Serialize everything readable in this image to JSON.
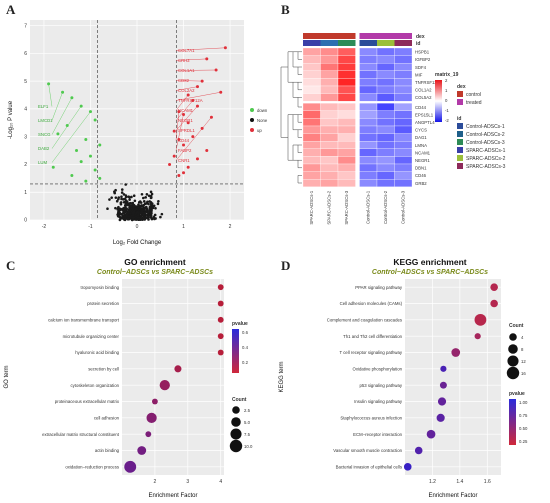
{
  "panels": {
    "A": "A",
    "B": "B",
    "C": "C",
    "D": "D"
  },
  "volcano": {
    "xlabel": "Log₂ Fold Change",
    "ylabel": "-Log₁₀ P value",
    "xticks": [
      "-2",
      "-1",
      "0",
      "1",
      "2"
    ],
    "yticks": [
      "0",
      "1",
      "2",
      "3",
      "4",
      "5",
      "6",
      "7"
    ],
    "legend": [
      {
        "label": "down",
        "color": "#4fc94f"
      },
      {
        "label": "None",
        "color": "#111111"
      },
      {
        "label": "up",
        "color": "#e0303a"
      }
    ],
    "up_labels": [
      "COL7A1",
      "CRH2",
      "COL1A1",
      "CD82",
      "COL2A2",
      "TNFRSF12A",
      "NCAM1",
      "NEGR1",
      "SPRDL1",
      "CD44",
      "FABP2",
      "CNR1"
    ],
    "down_labels": [
      "ELF1",
      "LMCD1",
      "SNCG",
      "DAB2",
      "LUM"
    ]
  },
  "heatmap": {
    "genes": [
      "HSPB1",
      "IGFBP2",
      "SDF4",
      "MIF",
      "TNFRSF12A",
      "COL1A2",
      "COL5A2",
      "CD44",
      "EPS15L1",
      "ANGPTL4",
      "CYCS",
      "DAG1",
      "LMNA",
      "NCAM1",
      "NEGR1",
      "DBN1",
      "CD46",
      "GRB2"
    ],
    "columns": [
      "SPARC-ADSCs-1",
      "SPARC-ADSCs-2",
      "SPARC-ADSCs-3",
      "Control-ADSCs-1",
      "Control-ADSCs-2",
      "Control-ADSCs-3"
    ],
    "legend_title": "matrix_19",
    "scale_ticks": [
      "2",
      "1",
      "0",
      "-1",
      "-2"
    ],
    "dex_title": "dex",
    "dex_items": [
      {
        "label": "control",
        "color": "#c0392b"
      },
      {
        "label": "treated",
        "color": "#b23aa8"
      }
    ],
    "id_title": "id",
    "id_items": [
      {
        "label": "Control-ADSCs-1",
        "color": "#2b4c9a"
      },
      {
        "label": "Control-ADSCs-2",
        "color": "#1e5f8a"
      },
      {
        "label": "Control-ADSCs-3",
        "color": "#2e8b57"
      },
      {
        "label": "SPARC-ADSCs-1",
        "color": "#3a3fa8"
      },
      {
        "label": "SPARC-ADSCs-2",
        "color": "#9bbf3a"
      },
      {
        "label": "SPARC-ADSCs-3",
        "color": "#8e2a5a"
      }
    ],
    "dex_bar": [
      "#c0392b",
      "#c0392b",
      "#c0392b",
      "#b23aa8",
      "#b23aa8",
      "#b23aa8"
    ],
    "id_bar": [
      "#3a3fa8",
      "#2e6fb0",
      "#2e8b57",
      "#2b4c9a",
      "#9bbf3a",
      "#8e2a5a"
    ]
  },
  "go": {
    "title": "GO enrichment",
    "subtitle": "Control−ADSCs vs SPARC−ADSCs",
    "xlabel": "Enrichment Factor",
    "ylabel": "GO term",
    "xticks": [
      "2",
      "3",
      "4"
    ],
    "pvalue_title": "pvalue",
    "pvalue_ticks": [
      "0.6",
      "0.4",
      "0.2"
    ],
    "count_title": "Count",
    "count_ticks": [
      "2.5",
      "5.0",
      "7.5",
      "10.0"
    ]
  },
  "kegg": {
    "title": "KEGG enrichment",
    "subtitle": "Control−ADSCs vs SPARC−ADSCs",
    "xlabel": "Enrichment Factor",
    "ylabel": "KEGG term",
    "xticks": [
      "1.2",
      "1.4",
      "1.6"
    ],
    "count_title": "Count",
    "count_ticks": [
      "4",
      "8",
      "12",
      "16"
    ],
    "pvalue_title": "pvalue",
    "pvalue_ticks": [
      "1.00",
      "0.75",
      "0.50",
      "0.25"
    ]
  },
  "chart_data": [
    {
      "type": "scatter",
      "title": "",
      "xlabel": "Log₂ Fold Change",
      "ylabel": "-Log₁₀ P value",
      "xlim": [
        -2.3,
        2.3
      ],
      "ylim": [
        0,
        7.2
      ],
      "series": [
        {
          "name": "up",
          "x": [
            1.9,
            1.5,
            1.7,
            1.4,
            1.3,
            1.8,
            1.1,
            1.2,
            1.3,
            0.9,
            1.0,
            1.6,
            1.1,
            1.4,
            0.8,
            1.2,
            0.9,
            1.0,
            1.5,
            0.8,
            1.3,
            0.7,
            1.1,
            1.0,
            0.9
          ],
          "y": [
            6.2,
            5.8,
            5.4,
            5.0,
            4.8,
            4.6,
            4.5,
            4.3,
            4.1,
            3.9,
            3.8,
            3.7,
            3.5,
            3.3,
            3.2,
            3.0,
            2.9,
            2.7,
            2.5,
            2.3,
            2.2,
            2.0,
            1.9,
            1.7,
            1.6
          ]
        },
        {
          "name": "down",
          "x": [
            -1.9,
            -1.6,
            -1.4,
            -1.2,
            -1.0,
            -0.9,
            -1.5,
            -1.7,
            -1.1,
            -0.8,
            -1.3,
            -1.0,
            -1.2,
            -1.8,
            -0.9,
            -1.4,
            -0.8,
            -1.1
          ],
          "y": [
            4.9,
            4.6,
            4.4,
            4.1,
            3.9,
            3.6,
            3.4,
            3.1,
            2.9,
            2.7,
            2.5,
            2.3,
            2.1,
            1.9,
            1.8,
            1.6,
            1.5,
            1.4
          ]
        }
      ]
    },
    {
      "type": "scatter",
      "title": "GO enrichment",
      "xlabel": "Enrichment Factor",
      "ylabel": "GO term",
      "xlim": [
        1.0,
        4.1
      ],
      "categories": [
        "tropomyosin binding",
        "protein secretion",
        "calcium ion transmembrane transport",
        "microtubule organizing center",
        "hyaluronic acid binding",
        "secretion by cell",
        "cytoskeleton organization",
        "proteinaceous extracellular matrix",
        "cell adhesion",
        "extracellular matrix structural constituent",
        "actin binding",
        "oxidation−reduction process"
      ],
      "series": [
        {
          "name": "enrichment",
          "values": [
            4.0,
            4.0,
            4.0,
            4.0,
            4.0,
            2.7,
            2.3,
            2.0,
            1.9,
            1.8,
            1.6,
            1.25
          ]
        },
        {
          "name": "count",
          "values": [
            1,
            1,
            1,
            1,
            1,
            2,
            6,
            1,
            6,
            1,
            4,
            9
          ]
        },
        {
          "name": "pvalue",
          "values": [
            0.1,
            0.1,
            0.1,
            0.1,
            0.1,
            0.2,
            0.3,
            0.35,
            0.4,
            0.45,
            0.5,
            0.55
          ]
        }
      ]
    },
    {
      "type": "scatter",
      "title": "KEGG enrichment",
      "xlabel": "Enrichment Factor",
      "ylabel": "KEGG term",
      "xlim": [
        1.0,
        1.7
      ],
      "categories": [
        "PPAR signaling pathway",
        "Cell adhesion molecules (CAMs)",
        "Complement and coagulation cascades",
        "Th1 and Th2 cell differentiation",
        "T cell receptor signaling pathway",
        "Oxidative phosphorylation",
        "p53 signaling pathway",
        "Insulin signaling pathway",
        "Staphylococcus aureus infection",
        "ECM−receptor interaction",
        "Vascular smooth muscle contraction",
        "Bacterial invasion of epithelial cells"
      ],
      "series": [
        {
          "name": "enrichment",
          "values": [
            1.65,
            1.65,
            1.55,
            1.53,
            1.37,
            1.28,
            1.28,
            1.27,
            1.26,
            1.19,
            1.1,
            1.02
          ]
        },
        {
          "name": "count",
          "values": [
            4,
            4,
            14,
            2,
            6,
            2,
            3,
            5,
            5,
            6,
            4,
            4
          ]
        },
        {
          "name": "pvalue",
          "values": [
            0.12,
            0.12,
            0.1,
            0.2,
            0.3,
            0.75,
            0.55,
            0.6,
            0.65,
            0.6,
            0.7,
            0.85
          ]
        }
      ]
    }
  ]
}
